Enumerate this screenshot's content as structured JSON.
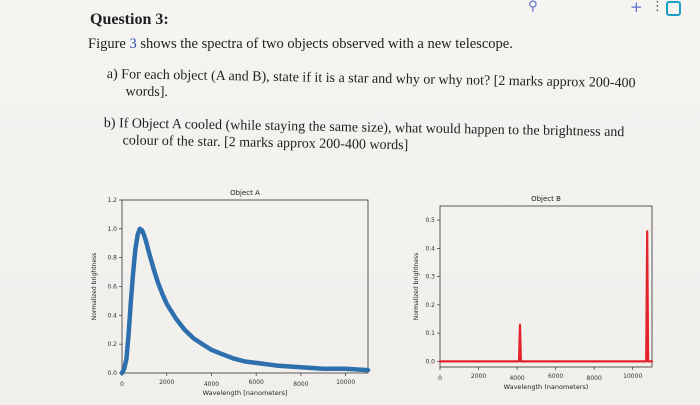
{
  "top_icons": {
    "plus": "+",
    "menu": "⋮",
    "pin": "⚲"
  },
  "question": {
    "title": "Question 3:",
    "intro_prefix": "Figure ",
    "intro_link": "3",
    "intro_suffix": " shows the spectra of two objects observed with a new telescope.",
    "item_a_line1": "a)  For each object (A and B), state if it is a star and why or why not? [2 marks approx 200-400",
    "item_a_line2": "words].",
    "item_b_line1": "b)  If Object A cooled (while staying the same size), what would happen to the brightness and",
    "item_b_line2": "colour of the star. [2 marks approx 200-400 words]"
  },
  "colors": {
    "series_a": "#2e70ae",
    "series_b": "#e3232b",
    "axis": "#333333"
  },
  "chart_data": [
    {
      "type": "line",
      "title": "Object A",
      "xlabel": "Wavelength [nanometers]",
      "ylabel": "Normalized brightness",
      "xlim": [
        0,
        11000
      ],
      "ylim": [
        0,
        1.2
      ],
      "xticks": [
        0,
        2000,
        4000,
        6000,
        8000,
        10000
      ],
      "xtick_labels": [
        "0",
        "2000",
        "4000",
        "6000",
        "8000",
        "10000"
      ],
      "yticks": [
        0.0,
        0.2,
        0.4,
        0.6,
        0.8,
        1.0,
        1.2
      ],
      "ytick_labels": [
        "0.0",
        "0.2",
        "0.4",
        "0.6",
        "0.8",
        "1.0",
        "1.2"
      ],
      "grid": false,
      "series": [
        {
          "x": [
            0,
            100,
            200,
            300,
            400,
            500,
            600,
            700,
            800,
            900,
            1000,
            1100,
            1200,
            1400,
            1600,
            1800,
            2000,
            2400,
            2800,
            3200,
            3600,
            4000,
            4500,
            5000,
            5500,
            6000,
            7000,
            8000,
            9000,
            10000,
            11000
          ],
          "y": [
            0.0,
            0.03,
            0.1,
            0.28,
            0.5,
            0.7,
            0.86,
            0.96,
            1.0,
            0.99,
            0.95,
            0.9,
            0.84,
            0.73,
            0.63,
            0.55,
            0.48,
            0.38,
            0.3,
            0.24,
            0.2,
            0.16,
            0.13,
            0.1,
            0.08,
            0.07,
            0.05,
            0.04,
            0.03,
            0.03,
            0.02
          ]
        }
      ]
    },
    {
      "type": "line",
      "title": "Object B",
      "xlabel": "Wavelength (nanometers)",
      "ylabel": "Normalized brightness",
      "xlim": [
        0,
        11000
      ],
      "ylim": [
        -0.02,
        0.55
      ],
      "xticks": [
        0,
        2000,
        4000,
        6000,
        8000,
        10000
      ],
      "xtick_labels": [
        "0",
        "2000",
        "4000",
        "6000",
        "8000",
        "10000"
      ],
      "yticks": [
        0.0,
        0.1,
        0.2,
        0.3,
        0.4,
        0.5
      ],
      "ytick_labels": [
        "0.0",
        "0.1",
        "0.2",
        "0.3",
        "0.4",
        "0.5"
      ],
      "grid": false,
      "series": [
        {
          "x": [
            0,
            4100,
            4150,
            4200,
            10700,
            10750,
            10800,
            11000
          ],
          "y": [
            0.0,
            0.0,
            0.13,
            0.0,
            0.0,
            0.46,
            0.0,
            0.0
          ]
        }
      ]
    }
  ]
}
